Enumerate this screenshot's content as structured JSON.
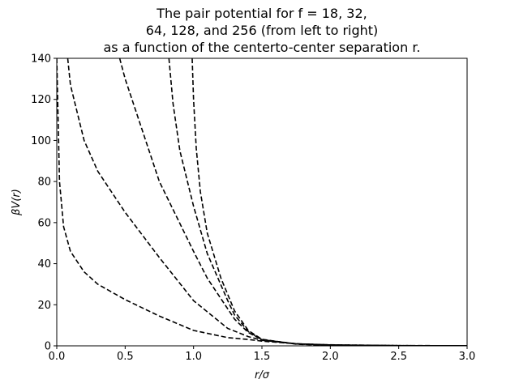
{
  "chart_data": {
    "type": "line",
    "title_lines": [
      "The pair potential for f = 18, 32,",
      "64, 128, and 256 (from left to right)",
      "as a function of the centerto-center separation r."
    ],
    "xlabel": "r/σ",
    "ylabel": "βV(r)",
    "xlim": [
      0.0,
      3.0
    ],
    "ylim": [
      0,
      140
    ],
    "xticks": [
      0.0,
      0.5,
      1.0,
      1.5,
      2.0,
      2.5,
      3.0
    ],
    "xtick_labels": [
      "0.0",
      "0.5",
      "1.0",
      "1.5",
      "2.0",
      "2.5",
      "3.0"
    ],
    "yticks": [
      0,
      20,
      40,
      60,
      80,
      100,
      120,
      140
    ],
    "ytick_labels": [
      "0",
      "20",
      "40",
      "60",
      "80",
      "100",
      "120",
      "140"
    ],
    "grid": false,
    "line_style": "dashed",
    "line_color": "#000000",
    "series": [
      {
        "x": [
          0.0,
          0.02,
          0.05,
          0.1,
          0.2,
          0.3,
          0.5,
          0.75,
          1.0,
          1.25,
          1.4,
          1.5,
          1.75,
          2.0,
          2.5,
          3.0
        ],
        "y": [
          140,
          80,
          58,
          46,
          36,
          30,
          22.5,
          14.5,
          7.5,
          4.0,
          3.1,
          2.3,
          1.0,
          0.5,
          0.15,
          0.05
        ]
      },
      {
        "x": [
          0.08,
          0.1,
          0.2,
          0.3,
          0.5,
          0.75,
          1.0,
          1.25,
          1.4,
          1.5,
          1.75,
          2.0,
          2.5,
          3.0
        ],
        "y": [
          140,
          127,
          100,
          85,
          65,
          43,
          22,
          8.5,
          4.5,
          2.7,
          1.0,
          0.45,
          0.12,
          0.04
        ]
      },
      {
        "x": [
          0.46,
          0.5,
          0.75,
          1.0,
          1.1,
          1.25,
          1.3,
          1.4,
          1.5,
          1.75,
          2.0,
          2.5,
          3.0
        ],
        "y": [
          140,
          130,
          80,
          46,
          33,
          18,
          13,
          6.5,
          3.0,
          1.0,
          0.4,
          0.1,
          0.03
        ]
      },
      {
        "x": [
          0.82,
          0.85,
          0.9,
          1.0,
          1.1,
          1.25,
          1.3,
          1.4,
          1.5,
          1.75,
          2.0,
          2.5,
          3.0
        ],
        "y": [
          140,
          118,
          95,
          68,
          45,
          22,
          15,
          7.0,
          3.0,
          0.9,
          0.3,
          0.08,
          0.02
        ]
      },
      {
        "x": [
          0.99,
          1.0,
          1.02,
          1.05,
          1.1,
          1.2,
          1.3,
          1.4,
          1.5,
          1.75,
          2.0,
          2.5,
          3.0
        ],
        "y": [
          140,
          120,
          96,
          75,
          55,
          33,
          17,
          7.5,
          3.2,
          0.8,
          0.25,
          0.05,
          0.01
        ]
      }
    ]
  }
}
